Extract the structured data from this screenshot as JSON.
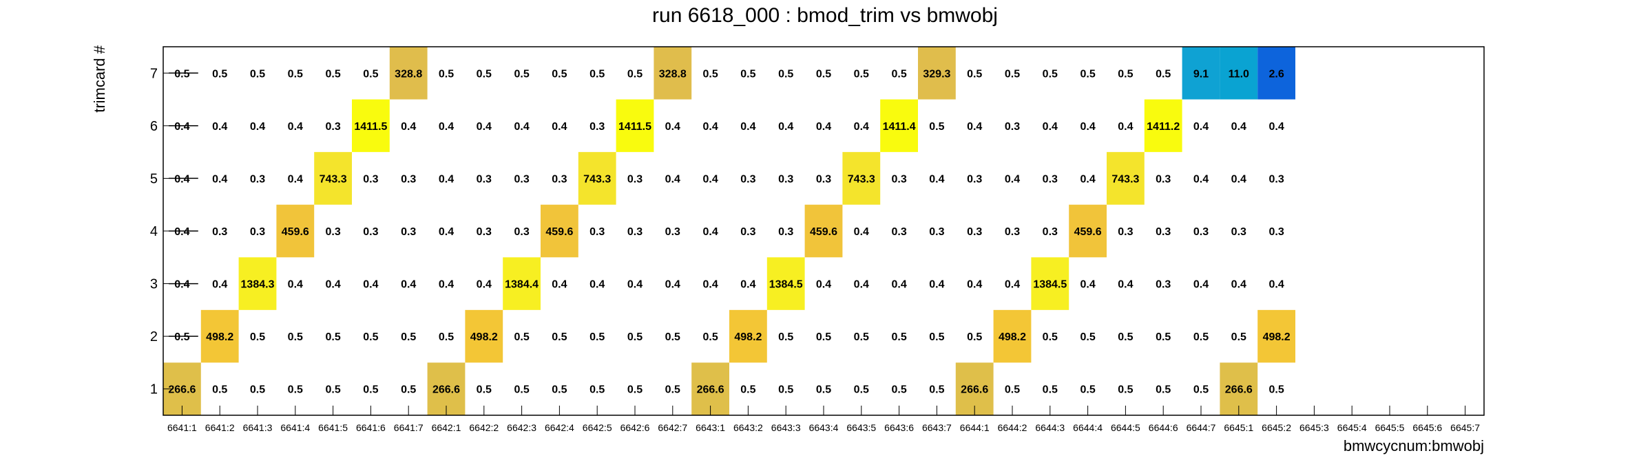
{
  "chart_data": {
    "type": "heatmap",
    "title": "run 6618_000 : bmod_trim vs bmwobj",
    "xlabel": "bmwcycnum:bmwobj",
    "ylabel": "trimcard #",
    "x_categories": [
      "6641:1",
      "6641:2",
      "6641:3",
      "6641:4",
      "6641:5",
      "6641:6",
      "6641:7",
      "6642:1",
      "6642:2",
      "6642:3",
      "6642:4",
      "6642:5",
      "6642:6",
      "6642:7",
      "6643:1",
      "6643:2",
      "6643:3",
      "6643:4",
      "6643:5",
      "6643:6",
      "6643:7",
      "6644:1",
      "6644:2",
      "6644:3",
      "6644:4",
      "6644:5",
      "6644:6",
      "6644:7",
      "6645:1",
      "6645:2",
      "6645:3",
      "6645:4",
      "6645:5",
      "6645:6",
      "6645:7"
    ],
    "y_categories": [
      "1",
      "2",
      "3",
      "4",
      "5",
      "6",
      "7"
    ],
    "grid": false,
    "values": [
      [
        "266.6",
        "0.5",
        "0.5",
        "0.5",
        "0.5",
        "0.5",
        "0.5",
        "266.6",
        "0.5",
        "0.5",
        "0.5",
        "0.5",
        "0.5",
        "0.5",
        "266.6",
        "0.5",
        "0.5",
        "0.5",
        "0.5",
        "0.5",
        "0.5",
        "266.6",
        "0.5",
        "0.5",
        "0.5",
        "0.5",
        "0.5",
        "0.5",
        "266.6",
        "0.5",
        "",
        "",
        "",
        "",
        ""
      ],
      [
        "0.5",
        "498.2",
        "0.5",
        "0.5",
        "0.5",
        "0.5",
        "0.5",
        "0.5",
        "498.2",
        "0.5",
        "0.5",
        "0.5",
        "0.5",
        "0.5",
        "0.5",
        "498.2",
        "0.5",
        "0.5",
        "0.5",
        "0.5",
        "0.5",
        "0.5",
        "498.2",
        "0.5",
        "0.5",
        "0.5",
        "0.5",
        "0.5",
        "0.5",
        "498.2",
        "",
        "",
        "",
        "",
        ""
      ],
      [
        "0.4",
        "0.4",
        "1384.3",
        "0.4",
        "0.4",
        "0.4",
        "0.4",
        "0.4",
        "0.4",
        "1384.4",
        "0.4",
        "0.4",
        "0.4",
        "0.4",
        "0.4",
        "0.4",
        "1384.5",
        "0.4",
        "0.4",
        "0.4",
        "0.4",
        "0.4",
        "0.4",
        "1384.5",
        "0.4",
        "0.4",
        "0.3",
        "0.4",
        "0.4",
        "0.4",
        "",
        "",
        "",
        "",
        ""
      ],
      [
        "0.4",
        "0.3",
        "0.3",
        "459.6",
        "0.3",
        "0.3",
        "0.3",
        "0.4",
        "0.3",
        "0.3",
        "459.6",
        "0.3",
        "0.3",
        "0.3",
        "0.4",
        "0.3",
        "0.3",
        "459.6",
        "0.4",
        "0.3",
        "0.3",
        "0.3",
        "0.3",
        "0.3",
        "459.6",
        "0.3",
        "0.3",
        "0.3",
        "0.3",
        "0.3",
        "",
        "",
        "",
        "",
        ""
      ],
      [
        "0.4",
        "0.4",
        "0.3",
        "0.4",
        "743.3",
        "0.3",
        "0.3",
        "0.4",
        "0.3",
        "0.3",
        "0.3",
        "743.3",
        "0.3",
        "0.4",
        "0.4",
        "0.3",
        "0.3",
        "0.3",
        "743.3",
        "0.3",
        "0.4",
        "0.3",
        "0.4",
        "0.3",
        "0.4",
        "743.3",
        "0.3",
        "0.4",
        "0.4",
        "0.3",
        "",
        "",
        "",
        "",
        ""
      ],
      [
        "0.4",
        "0.4",
        "0.4",
        "0.4",
        "0.3",
        "1411.5",
        "0.4",
        "0.4",
        "0.4",
        "0.4",
        "0.4",
        "0.3",
        "1411.5",
        "0.4",
        "0.4",
        "0.4",
        "0.4",
        "0.4",
        "0.4",
        "1411.4",
        "0.5",
        "0.4",
        "0.3",
        "0.4",
        "0.4",
        "0.4",
        "1411.2",
        "0.4",
        "0.4",
        "0.4",
        "",
        "",
        "",
        "",
        ""
      ],
      [
        "0.5",
        "0.5",
        "0.5",
        "0.5",
        "0.5",
        "0.5",
        "328.8",
        "0.5",
        "0.5",
        "0.5",
        "0.5",
        "0.5",
        "0.5",
        "328.8",
        "0.5",
        "0.5",
        "0.5",
        "0.5",
        "0.5",
        "0.5",
        "329.3",
        "0.5",
        "0.5",
        "0.5",
        "0.5",
        "0.5",
        "0.5",
        "9.1",
        "11.0",
        "2.6",
        "",
        "",
        "",
        "",
        ""
      ]
    ],
    "cell_colors": [
      {
        "row": 1,
        "col": 1,
        "color": "#dfbf4a"
      },
      {
        "row": 1,
        "col": 8,
        "color": "#dfbf4a"
      },
      {
        "row": 1,
        "col": 15,
        "color": "#dfbf4a"
      },
      {
        "row": 1,
        "col": 22,
        "color": "#dfbf4a"
      },
      {
        "row": 1,
        "col": 29,
        "color": "#dfbf4a"
      },
      {
        "row": 2,
        "col": 2,
        "color": "#f3c636"
      },
      {
        "row": 2,
        "col": 9,
        "color": "#f3c636"
      },
      {
        "row": 2,
        "col": 16,
        "color": "#f3c636"
      },
      {
        "row": 2,
        "col": 23,
        "color": "#f3c636"
      },
      {
        "row": 2,
        "col": 30,
        "color": "#f3c636"
      },
      {
        "row": 3,
        "col": 3,
        "color": "#f7ef22"
      },
      {
        "row": 3,
        "col": 10,
        "color": "#f7ef22"
      },
      {
        "row": 3,
        "col": 17,
        "color": "#f7ef22"
      },
      {
        "row": 3,
        "col": 24,
        "color": "#f7ef22"
      },
      {
        "row": 4,
        "col": 4,
        "color": "#f1c43a"
      },
      {
        "row": 4,
        "col": 11,
        "color": "#f1c43a"
      },
      {
        "row": 4,
        "col": 18,
        "color": "#f1c43a"
      },
      {
        "row": 4,
        "col": 25,
        "color": "#f1c43a"
      },
      {
        "row": 5,
        "col": 5,
        "color": "#f4e42c"
      },
      {
        "row": 5,
        "col": 12,
        "color": "#f4e42c"
      },
      {
        "row": 5,
        "col": 19,
        "color": "#f4e42c"
      },
      {
        "row": 5,
        "col": 26,
        "color": "#f4e42c"
      },
      {
        "row": 6,
        "col": 6,
        "color": "#f9fb0e"
      },
      {
        "row": 6,
        "col": 13,
        "color": "#f9fb0e"
      },
      {
        "row": 6,
        "col": 20,
        "color": "#f9fb0e"
      },
      {
        "row": 6,
        "col": 27,
        "color": "#f9fb0e"
      },
      {
        "row": 7,
        "col": 7,
        "color": "#e0bd4c"
      },
      {
        "row": 7,
        "col": 14,
        "color": "#e0bd4c"
      },
      {
        "row": 7,
        "col": 21,
        "color": "#e0bd4c"
      },
      {
        "row": 7,
        "col": 28,
        "color": "#0fa2d3"
      },
      {
        "row": 7,
        "col": 29,
        "color": "#0aa3d2"
      },
      {
        "row": 7,
        "col": 30,
        "color": "#0d64dc"
      }
    ],
    "strikethrough_column": 1
  }
}
